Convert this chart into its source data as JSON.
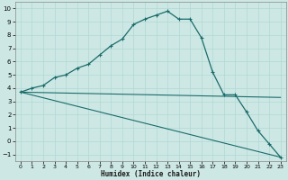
{
  "xlabel": "Humidex (Indice chaleur)",
  "background_color": "#cde8e4",
  "grid_color": "#b0d8d4",
  "line_color": "#1a6b6b",
  "xlim": [
    -0.5,
    23.5
  ],
  "ylim": [
    -1.5,
    10.5
  ],
  "xticks": [
    0,
    1,
    2,
    3,
    4,
    5,
    6,
    7,
    8,
    9,
    10,
    11,
    12,
    13,
    14,
    15,
    16,
    17,
    18,
    19,
    20,
    21,
    22,
    23
  ],
  "yticks": [
    -1,
    0,
    1,
    2,
    3,
    4,
    5,
    6,
    7,
    8,
    9,
    10
  ],
  "line1_x": [
    0,
    1,
    2,
    3,
    4,
    5,
    6,
    7,
    8,
    9,
    10,
    11,
    12,
    13,
    14,
    15,
    16,
    17,
    18,
    19,
    20,
    21,
    22,
    23
  ],
  "line1_y": [
    3.7,
    4.0,
    4.2,
    4.8,
    5.0,
    5.5,
    5.8,
    6.5,
    7.2,
    7.7,
    8.8,
    9.2,
    9.5,
    9.8,
    9.2,
    9.2,
    7.8,
    5.2,
    3.5,
    3.5,
    2.2,
    0.8,
    -0.2,
    -1.2
  ],
  "line2_x": [
    0,
    23
  ],
  "line2_y": [
    3.7,
    3.3
  ],
  "line3_x": [
    0,
    23
  ],
  "line3_y": [
    3.7,
    -1.2
  ]
}
